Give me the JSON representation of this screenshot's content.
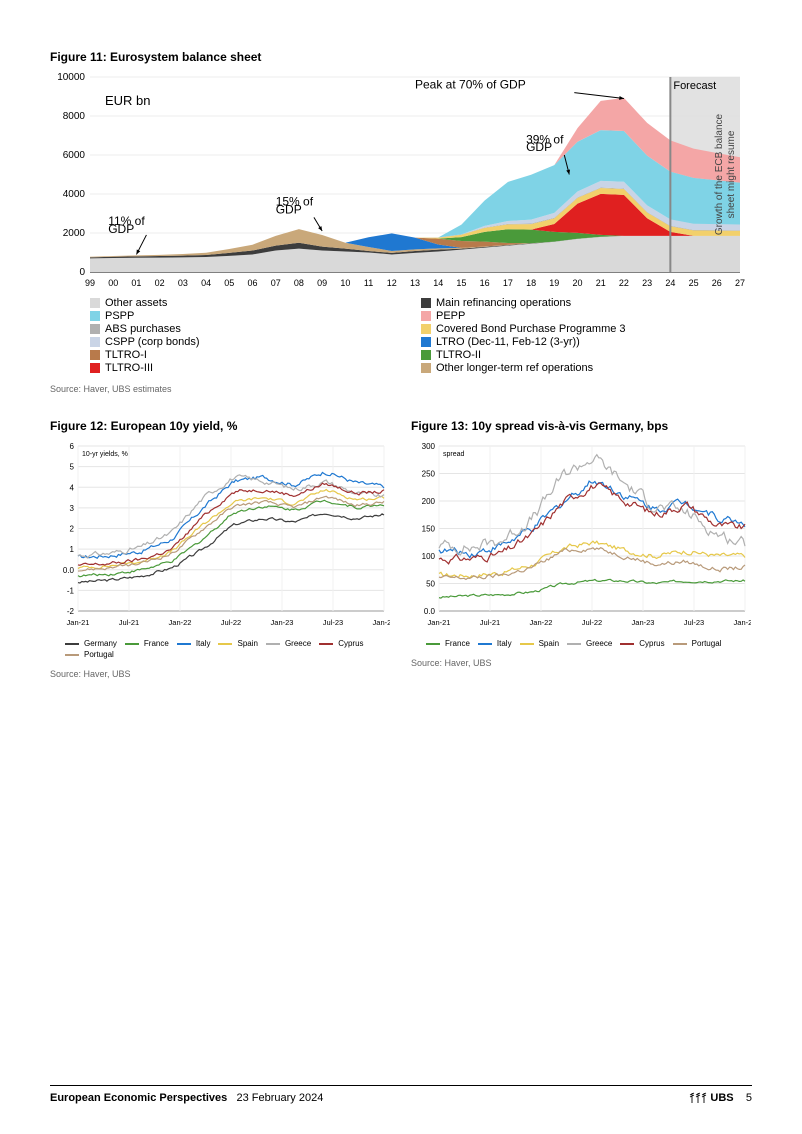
{
  "figure11": {
    "title": "Figure 11: Eurosystem balance sheet",
    "source": "Source: Haver, UBS estimates",
    "ylabel": "EUR bn",
    "ylim": [
      0,
      10000
    ],
    "ytick_step": 2000,
    "x_ticks": [
      "99",
      "00",
      "01",
      "02",
      "03",
      "04",
      "05",
      "06",
      "07",
      "08",
      "09",
      "10",
      "11",
      "12",
      "13",
      "14",
      "15",
      "16",
      "17",
      "18",
      "19",
      "20",
      "21",
      "22",
      "23",
      "24",
      "25",
      "26",
      "27"
    ],
    "annotations": {
      "a1": "11% of GDP",
      "a2": "15% of GDP",
      "a3": "39% of GDP",
      "a4": "Peak at 70% of GDP",
      "forecast": "Forecast",
      "vtext": "Growth of the ECB balance sheet might resume"
    },
    "legend": [
      {
        "label": "Other assets",
        "color": "#d9d9d9"
      },
      {
        "label": "Main refinancing operations",
        "color": "#3d3d3d"
      },
      {
        "label": "PSPP",
        "color": "#7fd3e6"
      },
      {
        "label": "PEPP",
        "color": "#f4a6a6"
      },
      {
        "label": "ABS purchases",
        "color": "#b0b0b0"
      },
      {
        "label": "Covered Bond Purchase Programme 3",
        "color": "#f2d06b"
      },
      {
        "label": "CSPP (corp bonds)",
        "color": "#c9d4e6"
      },
      {
        "label": "LTRO (Dec-11, Feb-12 (3-yr))",
        "color": "#1f78d1"
      },
      {
        "label": "TLTRO-I",
        "color": "#b87a4b"
      },
      {
        "label": "TLTRO-II",
        "color": "#4a9a3a"
      },
      {
        "label": "TLTRO-III",
        "color": "#e02020"
      },
      {
        "label": "Other longer-term ref operations",
        "color": "#c9a87a"
      }
    ],
    "colors": {
      "other": "#d9d9d9",
      "mro": "#3d3d3d",
      "pspp": "#7fd3e6",
      "pepp": "#f4a6a6",
      "abs": "#b0b0b0",
      "cbpp": "#f2d06b",
      "cspp": "#c9d4e6",
      "ltro": "#1f78d1",
      "tltro1": "#b87a4b",
      "tltro2": "#4a9a3a",
      "tltro3": "#e02020",
      "oltr": "#c9a87a",
      "forecast_bg": "#cfcfcf",
      "axis": "#666666"
    }
  },
  "figure12": {
    "title": "Figure 12: European 10y yield, %",
    "source": "Source: Haver, UBS",
    "chart_label": "10-yr yields, %",
    "ylim": [
      -2.0,
      6.0
    ],
    "ytick_step": 1.0,
    "x_ticks": [
      "Jan-21",
      "Jul-21",
      "Jan-22",
      "Jul-22",
      "Jan-23",
      "Jul-23",
      "Jan-24"
    ],
    "series": [
      {
        "name": "Germany",
        "color": "#3d3d3d"
      },
      {
        "name": "France",
        "color": "#4a9a3a"
      },
      {
        "name": "Italy",
        "color": "#1f78d1"
      },
      {
        "name": "Spain",
        "color": "#e6c84a"
      },
      {
        "name": "Greece",
        "color": "#b0b0b0"
      },
      {
        "name": "Cyprus",
        "color": "#a03030"
      },
      {
        "name": "Portugal",
        "color": "#b89a7a"
      }
    ]
  },
  "figure13": {
    "title": "Figure 13: 10y spread vis-à-vis Germany, bps",
    "source": "Source: Haver, UBS",
    "chart_label": "spread",
    "ylim": [
      0,
      300
    ],
    "ytick_step": 50,
    "x_ticks": [
      "Jan-21",
      "Jul-21",
      "Jan-22",
      "Jul-22",
      "Jan-23",
      "Jul-23",
      "Jan-24"
    ],
    "series": [
      {
        "name": "France",
        "color": "#4a9a3a"
      },
      {
        "name": "Italy",
        "color": "#1f78d1"
      },
      {
        "name": "Spain",
        "color": "#e6c84a"
      },
      {
        "name": "Greece",
        "color": "#b0b0b0"
      },
      {
        "name": "Cyprus",
        "color": "#a03030"
      },
      {
        "name": "Portugal",
        "color": "#b89a7a"
      }
    ]
  },
  "footer": {
    "title": "European Economic Perspectives",
    "date": "23 February 2024",
    "brand": "UBS",
    "page": "5"
  }
}
